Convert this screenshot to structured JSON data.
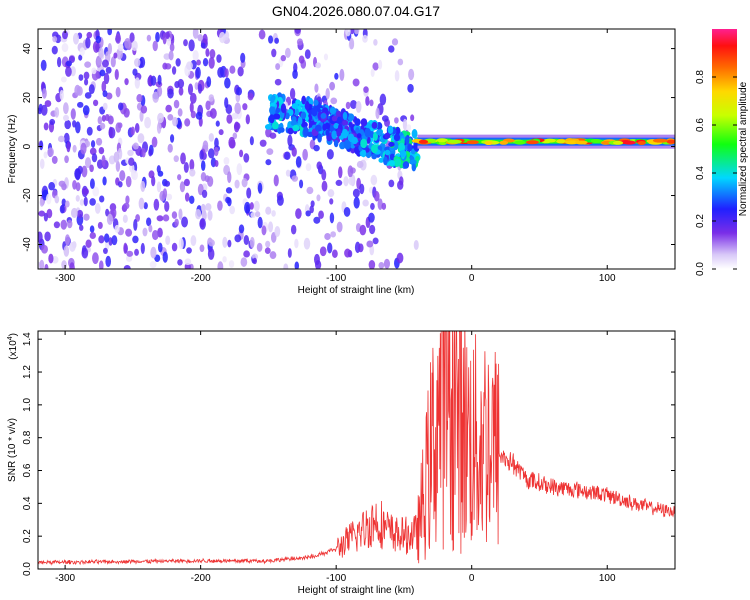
{
  "title": "GN04.2026.080.07.04.G17",
  "chart_data": [
    {
      "type": "heatmap",
      "xlabel": "Height of straight line (km)",
      "ylabel": "Frequency (Hz)",
      "xlim": [
        -320,
        150
      ],
      "ylim": [
        -50,
        48
      ],
      "x_ticks": [
        -300,
        -200,
        -100,
        0,
        100
      ],
      "x_tick_labels": [
        "-300",
        "-200",
        "-100",
        "0",
        "100"
      ],
      "y_ticks": [
        -40,
        -20,
        0,
        20,
        40
      ],
      "y_tick_labels": [
        "-40",
        "-20",
        "0",
        "20",
        "40"
      ],
      "colorbar": {
        "label": "Normalized spectral amplitude",
        "range": [
          0,
          1
        ],
        "ticks": [
          0.0,
          0.2,
          0.4,
          0.6,
          0.8
        ],
        "tick_labels": [
          "0.0",
          "0.2",
          "0.4",
          "0.6",
          "0.8"
        ],
        "colormap": "rainbow"
      },
      "features": {
        "scatter_region": {
          "x_range": [
            -320,
            -40
          ],
          "freq_range": [
            -50,
            48
          ],
          "amplitude": [
            0.02,
            0.25
          ]
        },
        "descending_trace": {
          "x": [
            -150,
            -120,
            -100,
            -80,
            -60,
            -40
          ],
          "freq": [
            14,
            12,
            8,
            4,
            0,
            -2
          ],
          "amplitude": [
            0.35,
            0.3,
            0.3,
            0.35,
            0.4,
            0.45
          ]
        },
        "stable_trace": {
          "x_range": [
            -40,
            150
          ],
          "freq": 2,
          "amplitude": [
            0.5,
            0.95
          ]
        }
      }
    },
    {
      "type": "line",
      "xlabel": "Height of straight line (km)",
      "ylabel": "SNR (10 * v/v)",
      "y_multiplier": "(x10",
      "y_multiplier_exp": "4",
      "y_multiplier_close": ")",
      "xlim": [
        -320,
        150
      ],
      "ylim": [
        0,
        1.45
      ],
      "x_ticks": [
        -300,
        -200,
        -100,
        0,
        100
      ],
      "x_tick_labels": [
        "-300",
        "-200",
        "-100",
        "0",
        "100"
      ],
      "y_ticks": [
        0.0,
        0.2,
        0.4,
        0.6,
        0.8,
        1.0,
        1.2,
        1.4
      ],
      "y_tick_labels": [
        "0.0",
        "0.2",
        "0.4",
        "0.6",
        "0.8",
        "1.0",
        "1.2",
        "1.4"
      ],
      "line_color": "#ee3333",
      "series": [
        {
          "x": [
            -320,
            -200,
            -150,
            -120,
            -100,
            -90,
            -80,
            -70,
            -60,
            -50,
            -40,
            -35,
            -30,
            -25,
            -20,
            -15,
            -10,
            -5,
            0,
            5,
            10,
            15,
            20,
            30,
            40,
            60,
            80,
            100,
            120,
            140,
            150
          ],
          "values": [
            0.04,
            0.05,
            0.05,
            0.07,
            0.12,
            0.18,
            0.24,
            0.3,
            0.22,
            0.2,
            0.22,
            0.45,
            0.7,
            0.95,
            1.1,
            1.05,
            0.95,
            0.85,
            0.78,
            0.75,
            0.8,
            0.78,
            0.7,
            0.65,
            0.55,
            0.5,
            0.48,
            0.45,
            0.4,
            0.36,
            0.35
          ]
        }
      ]
    }
  ]
}
